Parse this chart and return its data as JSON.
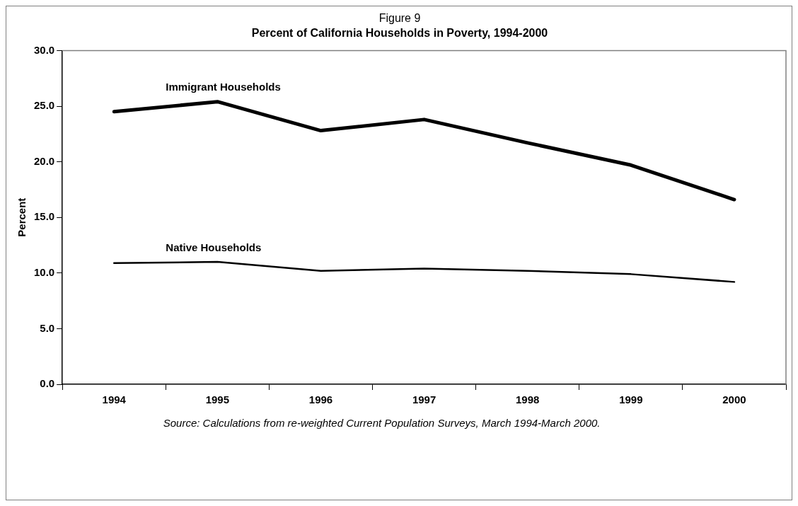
{
  "chart_data": {
    "type": "line",
    "title": "Figure 9",
    "subtitle": "Percent of California Households in Poverty, 1994-2000",
    "ylabel": "Percent",
    "categories": [
      "1994",
      "1995",
      "1996",
      "1997",
      "1998",
      "1999",
      "2000"
    ],
    "series": [
      {
        "name": "Immigrant Households",
        "color": "#000000",
        "values": [
          24.5,
          25.4,
          22.8,
          23.8,
          21.7,
          19.7,
          16.6
        ]
      },
      {
        "name": "Native Households",
        "color": "#000000",
        "values": [
          10.9,
          11.0,
          10.2,
          10.4,
          10.2,
          9.9,
          9.2
        ]
      }
    ],
    "ylim": [
      0,
      30
    ],
    "yticks": [
      {
        "value": 0,
        "label": "0.0"
      },
      {
        "value": 5,
        "label": "5.0"
      },
      {
        "value": 10,
        "label": "10.0"
      },
      {
        "value": 15,
        "label": "15.0"
      },
      {
        "value": 20,
        "label": "20.0"
      },
      {
        "value": 25,
        "label": "25.0"
      },
      {
        "value": 30,
        "label": "30.0"
      }
    ],
    "grid": false,
    "legend": false,
    "marker": "none",
    "line_style": "solid",
    "annotations": [
      "Source: Calculations from re-weighted Current Population Surveys, March 1994-March 2000."
    ]
  }
}
